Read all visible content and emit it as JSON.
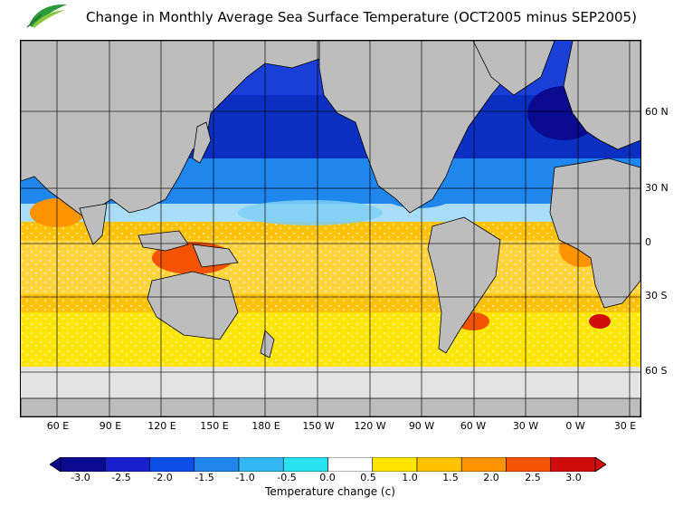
{
  "title": "Change in Monthly Average Sea Surface Temperature (OCT2005 minus SEP2005)",
  "logo": {
    "name": "leaf-logo",
    "org_text": ""
  },
  "map": {
    "type": "sst-anomaly-map",
    "lat_labels": [
      "60 N",
      "30 N",
      "0",
      "30 S",
      "60 S"
    ],
    "lon_labels": [
      "60 E",
      "90 E",
      "120 E",
      "150 E",
      "180 E",
      "150 W",
      "120 W",
      "90 W",
      "60 W",
      "30 W",
      "0 W",
      "30 E"
    ],
    "land_color": "#bdbdbd",
    "ice_color": "#e6e6e6"
  },
  "colorbar": {
    "title": "Temperature change  (c)",
    "ticks": [
      "-3.0",
      "-2.5",
      "-2.0",
      "-1.5",
      "-1.0",
      "-0.5",
      "0.0",
      "0.5",
      "1.0",
      "1.5",
      "2.0",
      "2.5",
      "3.0"
    ],
    "colors": [
      "#0b0b8f",
      "#1a1fd0",
      "#0b4fe6",
      "#1f86ee",
      "#34b8f4",
      "#28e1f1",
      "#ffffff",
      "#ffe600",
      "#ffc200",
      "#ff9400",
      "#f45400",
      "#d10c0c"
    ]
  }
}
